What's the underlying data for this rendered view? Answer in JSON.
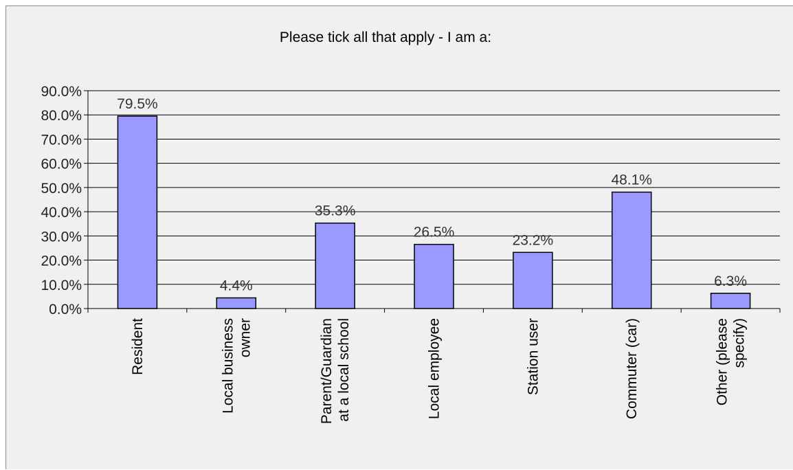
{
  "chart_data": {
    "type": "bar",
    "title": "Please tick all that apply - I am a:",
    "categories": [
      [
        "Resident"
      ],
      [
        "Local business",
        "owner"
      ],
      [
        "Parent/Guardian",
        "at a local school"
      ],
      [
        "Local employee"
      ],
      [
        "Station user"
      ],
      [
        "Commuter (car)"
      ],
      [
        "Other (please",
        "specify)"
      ]
    ],
    "values": [
      79.5,
      4.4,
      35.3,
      26.5,
      23.2,
      48.1,
      6.3
    ],
    "data_labels": [
      "79.5%",
      "4.4%",
      "35.3%",
      "26.5%",
      "23.2%",
      "48.1%",
      "6.3%"
    ],
    "ylim": [
      0,
      90
    ],
    "yticks": [
      "0.0%",
      "10.0%",
      "20.0%",
      "30.0%",
      "40.0%",
      "50.0%",
      "60.0%",
      "70.0%",
      "80.0%",
      "90.0%"
    ],
    "grid": true,
    "legend": "none",
    "colors": {
      "bar_fill": "#9999ff",
      "bar_stroke": "#000000",
      "grid": "#000000",
      "background": "#f0f0f0"
    }
  }
}
